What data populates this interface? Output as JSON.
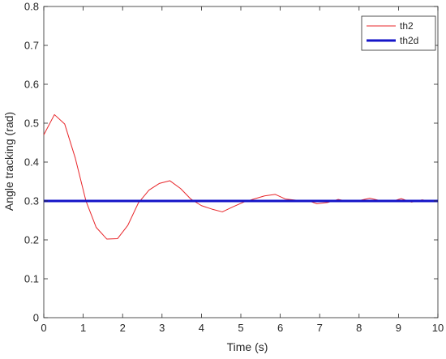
{
  "chart_data": {
    "type": "line",
    "xlabel": "Time (s)",
    "ylabel": "Angle tracking (rad)",
    "xlim": [
      0,
      10
    ],
    "ylim": [
      0,
      0.8
    ],
    "xticks": [
      "0",
      "1",
      "2",
      "3",
      "4",
      "5",
      "6",
      "7",
      "8",
      "9",
      "10"
    ],
    "yticks": [
      "0",
      "0.1",
      "0.2",
      "0.3",
      "0.4",
      "0.5",
      "0.6",
      "0.7",
      "0.8"
    ],
    "grid": false,
    "legend_position": "top-right",
    "series": [
      {
        "name": "th2",
        "color": "#e8262a",
        "line_width": "thin",
        "x": [
          0,
          0.27,
          0.53,
          0.8,
          1.07,
          1.33,
          1.6,
          1.87,
          2.13,
          2.4,
          2.67,
          2.93,
          3.2,
          3.47,
          3.73,
          4.0,
          4.27,
          4.53,
          4.8,
          5.07,
          5.33,
          5.6,
          5.87,
          6.13,
          6.4,
          6.67,
          6.93,
          7.2,
          7.47,
          7.73,
          8.0,
          8.27,
          8.53,
          8.8,
          9.07,
          9.33,
          9.6,
          9.87,
          10.0
        ],
        "y": [
          0.47,
          0.522,
          0.498,
          0.41,
          0.3,
          0.232,
          0.202,
          0.203,
          0.237,
          0.295,
          0.328,
          0.345,
          0.352,
          0.332,
          0.305,
          0.288,
          0.279,
          0.272,
          0.285,
          0.297,
          0.305,
          0.313,
          0.317,
          0.305,
          0.302,
          0.302,
          0.293,
          0.296,
          0.304,
          0.299,
          0.301,
          0.307,
          0.301,
          0.298,
          0.306,
          0.297,
          0.303,
          0.299,
          0.3
        ]
      },
      {
        "name": "th2d",
        "color": "#1414c8",
        "line_width": "thick",
        "x": [
          0,
          10
        ],
        "y": [
          0.3,
          0.3
        ]
      }
    ]
  }
}
